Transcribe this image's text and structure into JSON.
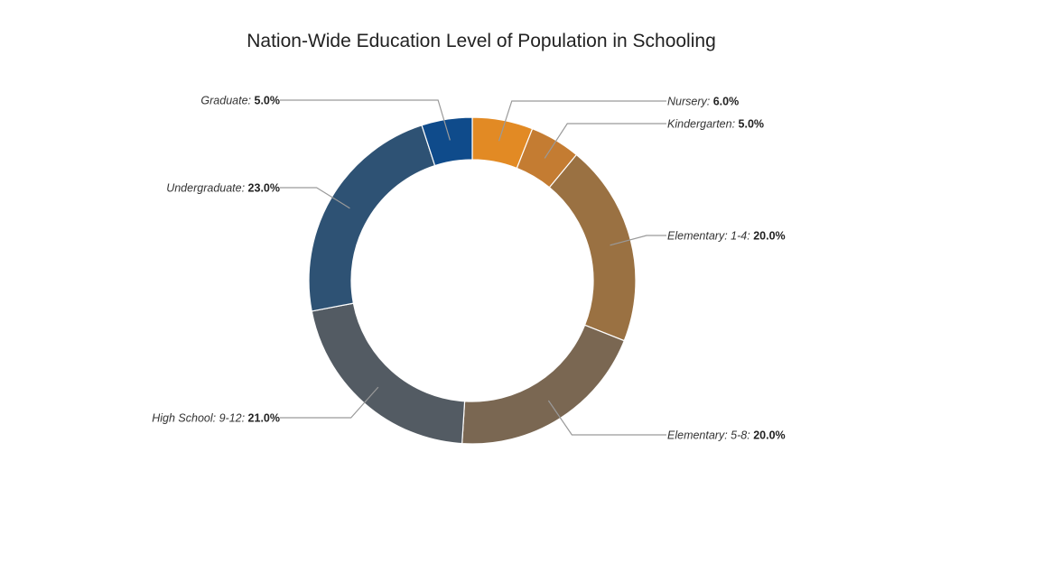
{
  "chart_data": {
    "type": "pie",
    "variant": "donut",
    "title": "Nation-Wide Education Level of Population in Schooling",
    "value_suffix": "%",
    "legend": "none",
    "slices": [
      {
        "label": "Nursery",
        "value": 6.0,
        "value_label": "6.0%",
        "color": "#E28A24",
        "side": "right"
      },
      {
        "label": "Kindergarten",
        "value": 5.0,
        "value_label": "5.0%",
        "color": "#C47C32",
        "side": "right"
      },
      {
        "label": "Elementary: 1-4",
        "value": 20.0,
        "value_label": "20.0%",
        "color": "#9A7142",
        "side": "right"
      },
      {
        "label": "Elementary: 5-8",
        "value": 20.0,
        "value_label": "20.0%",
        "color": "#7A6752",
        "side": "right"
      },
      {
        "label": "High School: 9-12",
        "value": 21.0,
        "value_label": "21.0%",
        "color": "#535B63",
        "side": "left"
      },
      {
        "label": "Undergraduate",
        "value": 23.0,
        "value_label": "23.0%",
        "color": "#2E5274",
        "side": "left"
      },
      {
        "label": "Graduate",
        "value": 5.0,
        "value_label": "5.0%",
        "color": "#0F4B8B",
        "side": "left"
      }
    ]
  }
}
